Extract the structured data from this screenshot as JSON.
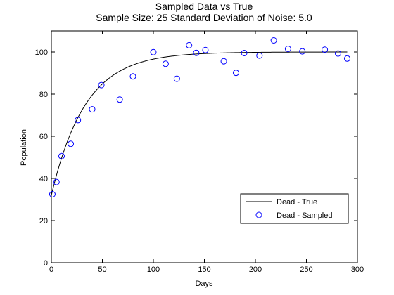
{
  "chart_data": {
    "type": "line",
    "title": "Sampled Data vs True",
    "subtitle": "Sample Size: 25   Standard Deviation of Noise: 5.0",
    "xlabel": "Days",
    "ylabel": "Population",
    "xlim": [
      0,
      300
    ],
    "ylim": [
      0,
      110
    ],
    "xticks": [
      0,
      50,
      100,
      150,
      200,
      250,
      300
    ],
    "yticks": [
      0,
      20,
      40,
      60,
      80,
      100
    ],
    "grid": false,
    "legend_position": "bottom-right",
    "true_curve": {
      "start": 32,
      "asymptote": 100,
      "rate": 0.03,
      "x_end": 290
    },
    "series": [
      {
        "name": "Dead - True",
        "style": "line",
        "color": "#000000",
        "x": [
          0,
          5,
          10,
          15,
          20,
          30,
          40,
          50,
          60,
          70,
          80,
          90,
          100,
          120,
          140,
          160,
          180,
          200,
          220,
          240,
          260,
          280,
          290
        ],
        "y": [
          32.0,
          41.5,
          49.6,
          56.5,
          62.7,
          72.1,
          79.1,
          84.2,
          88.2,
          91.1,
          93.3,
          95.0,
          96.6,
          98.1,
          99.0,
          99.4,
          99.7,
          99.8,
          99.9,
          100.0,
          100.0,
          100.0,
          100.0
        ]
      },
      {
        "name": "Dead - Sampled",
        "style": "marker",
        "color": "#0000ff",
        "x": [
          1,
          5,
          10,
          19,
          26,
          40,
          49,
          67,
          80,
          100,
          112,
          123,
          135,
          142,
          151,
          169,
          181,
          189,
          204,
          218,
          232,
          246,
          268,
          281,
          290
        ],
        "y": [
          32.5,
          38.3,
          50.6,
          56.4,
          67.7,
          72.8,
          84.3,
          77.4,
          88.4,
          99.9,
          94.4,
          87.3,
          103.2,
          99.6,
          100.9,
          95.6,
          90.1,
          99.5,
          98.3,
          105.5,
          101.5,
          100.3,
          101.1,
          99.3,
          96.9
        ]
      }
    ]
  }
}
